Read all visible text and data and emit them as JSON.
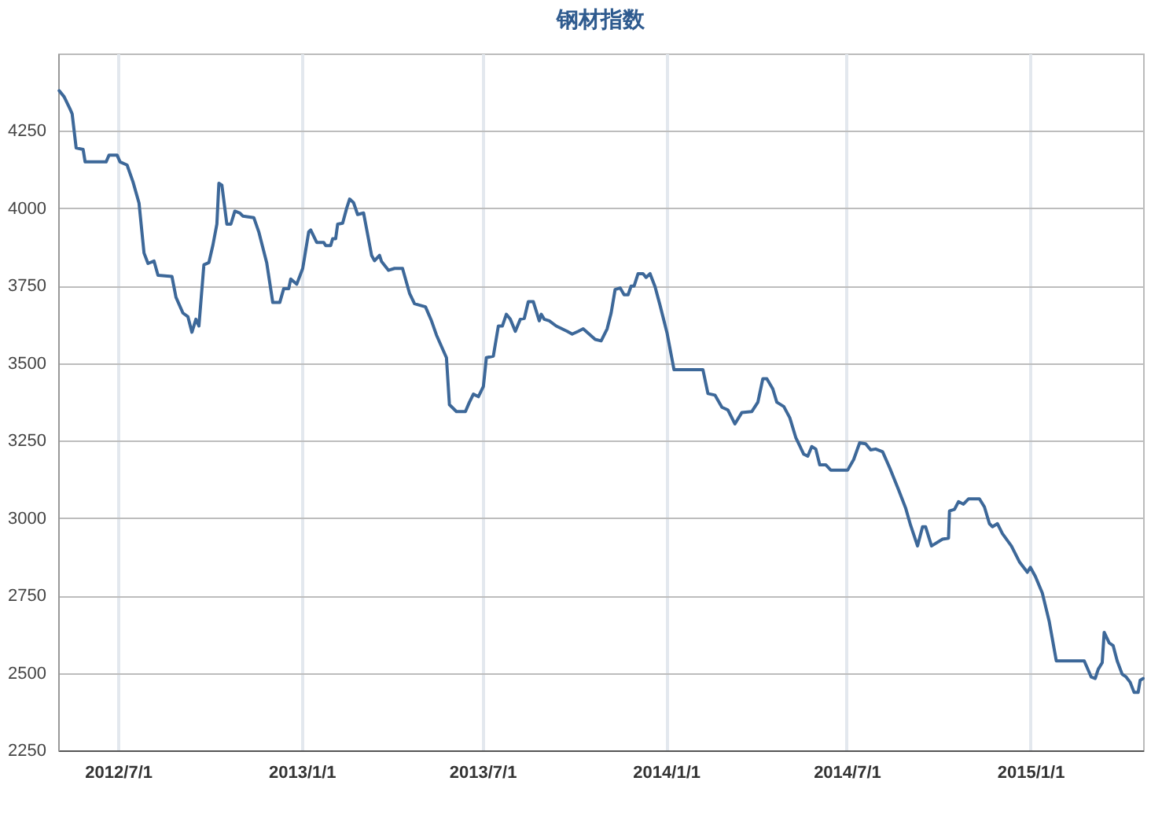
{
  "chart_data": {
    "type": "line",
    "title": "钢材指数",
    "x": [
      "2012-05-03",
      "2012-05-08",
      "2012-05-14",
      "2012-05-16",
      "2012-05-20",
      "2012-05-27",
      "2012-05-29",
      "2012-06-19",
      "2012-06-22",
      "2012-06-30",
      "2012-07-03",
      "2012-07-10",
      "2012-07-16",
      "2012-07-22",
      "2012-07-27",
      "2012-07-31",
      "2012-08-06",
      "2012-08-10",
      "2012-08-24",
      "2012-08-28",
      "2012-09-04",
      "2012-09-09",
      "2012-09-13",
      "2012-09-17",
      "2012-09-20",
      "2012-09-25",
      "2012-09-30",
      "2012-10-04",
      "2012-10-08",
      "2012-10-10",
      "2012-10-13",
      "2012-10-18",
      "2012-10-22",
      "2012-10-26",
      "2012-10-31",
      "2012-11-03",
      "2012-11-14",
      "2012-11-19",
      "2012-11-27",
      "2012-12-03",
      "2012-12-10",
      "2012-12-14",
      "2012-12-19",
      "2012-12-21",
      "2012-12-27",
      "2013-01-02",
      "2013-01-08",
      "2013-01-10",
      "2013-01-16",
      "2013-01-23",
      "2013-01-25",
      "2013-01-30",
      "2013-02-01",
      "2013-02-04",
      "2013-02-06",
      "2013-02-11",
      "2013-02-15",
      "2013-02-18",
      "2013-02-22",
      "2013-02-26",
      "2013-03-04",
      "2013-03-12",
      "2013-03-15",
      "2013-03-20",
      "2013-03-22",
      "2013-03-29",
      "2013-04-04",
      "2013-04-12",
      "2013-04-19",
      "2013-04-24",
      "2013-05-05",
      "2013-05-11",
      "2013-05-16",
      "2013-05-26",
      "2013-05-29",
      "2013-06-05",
      "2013-06-14",
      "2013-06-18",
      "2013-06-22",
      "2013-06-27",
      "2013-07-02",
      "2013-07-05",
      "2013-07-12",
      "2013-07-17",
      "2013-07-21",
      "2013-07-25",
      "2013-07-29",
      "2013-08-03",
      "2013-08-08",
      "2013-08-12",
      "2013-08-16",
      "2013-08-21",
      "2013-08-27",
      "2013-08-29",
      "2013-09-01",
      "2013-09-06",
      "2013-09-13",
      "2013-09-24",
      "2013-09-29",
      "2013-10-05",
      "2013-10-10",
      "2013-10-16",
      "2013-10-22",
      "2013-10-28",
      "2013-11-03",
      "2013-11-07",
      "2013-11-11",
      "2013-11-16",
      "2013-11-20",
      "2013-11-24",
      "2013-11-27",
      "2013-11-30",
      "2013-12-04",
      "2013-12-09",
      "2013-12-12",
      "2013-12-16",
      "2013-12-21",
      "2013-12-26",
      "2014-01-02",
      "2014-01-09",
      "2014-02-07",
      "2014-02-12",
      "2014-02-19",
      "2014-02-26",
      "2014-03-04",
      "2014-03-11",
      "2014-03-18",
      "2014-03-28",
      "2014-04-03",
      "2014-04-08",
      "2014-04-12",
      "2014-04-18",
      "2014-04-22",
      "2014-04-29",
      "2014-05-05",
      "2014-05-11",
      "2014-05-19",
      "2014-05-23",
      "2014-05-27",
      "2014-05-31",
      "2014-06-04",
      "2014-06-10",
      "2014-06-15",
      "2014-07-02",
      "2014-07-08",
      "2014-07-14",
      "2014-07-20",
      "2014-07-25",
      "2014-07-30",
      "2014-08-06",
      "2014-08-13",
      "2014-08-22",
      "2014-08-29",
      "2014-09-03",
      "2014-09-10",
      "2014-09-15",
      "2014-09-18",
      "2014-09-24",
      "2014-10-05",
      "2014-10-11",
      "2014-10-12",
      "2014-10-17",
      "2014-10-21",
      "2014-10-26",
      "2014-10-31",
      "2014-11-11",
      "2014-11-16",
      "2014-11-21",
      "2014-11-24",
      "2014-11-29",
      "2014-12-04",
      "2014-12-13",
      "2014-12-21",
      "2014-12-29",
      "2015-01-01",
      "2015-01-06",
      "2015-01-13",
      "2015-01-20",
      "2015-01-27",
      "2015-02-24",
      "2015-03-03",
      "2015-03-07",
      "2015-03-10",
      "2015-03-14",
      "2015-03-16",
      "2015-03-21",
      "2015-03-25",
      "2015-03-29",
      "2015-04-03",
      "2015-04-07",
      "2015-04-11",
      "2015-04-15",
      "2015-04-19",
      "2015-04-21",
      "2015-04-24"
    ],
    "series": [
      {
        "color": "#3d6899",
        "values": [
          4380,
          4360,
          4320,
          4305,
          4195,
          4190,
          4150,
          4150,
          4172,
          4172,
          4150,
          4140,
          4085,
          4017,
          3856,
          3822,
          3830,
          3784,
          3780,
          3713,
          3662,
          3650,
          3600,
          3642,
          3620,
          3818,
          3825,
          3881,
          3949,
          4081,
          4075,
          3949,
          3949,
          3991,
          3985,
          3975,
          3970,
          3924,
          3823,
          3696,
          3696,
          3741,
          3741,
          3772,
          3755,
          3806,
          3924,
          3930,
          3890,
          3890,
          3880,
          3880,
          3902,
          3902,
          3949,
          3952,
          4000,
          4030,
          4018,
          3980,
          3985,
          3848,
          3831,
          3848,
          3828,
          3800,
          3806,
          3806,
          3726,
          3692,
          3682,
          3637,
          3591,
          3518,
          3366,
          3344,
          3344,
          3374,
          3400,
          3392,
          3425,
          3518,
          3523,
          3620,
          3620,
          3658,
          3642,
          3603,
          3642,
          3645,
          3699,
          3699,
          3637,
          3658,
          3642,
          3637,
          3620,
          3603,
          3594,
          3603,
          3611,
          3594,
          3577,
          3572,
          3611,
          3662,
          3738,
          3743,
          3721,
          3721,
          3749,
          3749,
          3789,
          3789,
          3777,
          3789,
          3747,
          3687,
          3598,
          3479,
          3479,
          3402,
          3397,
          3358,
          3349,
          3304,
          3341,
          3344,
          3374,
          3450,
          3450,
          3417,
          3374,
          3360,
          3324,
          3260,
          3206,
          3200,
          3231,
          3223,
          3172,
          3172,
          3155,
          3155,
          3189,
          3243,
          3240,
          3220,
          3223,
          3214,
          3163,
          3091,
          3033,
          2977,
          2910,
          2972,
          2972,
          2910,
          2932,
          2935,
          3023,
          3028,
          3053,
          3045,
          3062,
          3062,
          3036,
          2982,
          2972,
          2982,
          2950,
          2910,
          2859,
          2825,
          2841,
          2812,
          2758,
          2665,
          2539,
          2539,
          2487,
          2482,
          2512,
          2533,
          2631,
          2597,
          2588,
          2539,
          2496,
          2487,
          2470,
          2437,
          2437,
          2476,
          2482
        ]
      }
    ],
    "xlim": [
      "2012-05-02",
      "2015-04-24"
    ],
    "xticks": [
      {
        "value": "2012-07-01",
        "label": "2012/7/1"
      },
      {
        "value": "2013-01-01",
        "label": "2013/1/1"
      },
      {
        "value": "2013-07-01",
        "label": "2013/7/1"
      },
      {
        "value": "2014-01-01",
        "label": "2014/1/1"
      },
      {
        "value": "2014-07-01",
        "label": "2014/7/1"
      },
      {
        "value": "2015-01-01",
        "label": "2015/1/1"
      }
    ],
    "ylim": [
      2250,
      4500
    ],
    "yticks": [
      2250,
      2500,
      2750,
      3000,
      3250,
      3500,
      3750,
      4000,
      4250
    ],
    "grid": true,
    "marker": "none",
    "line_style": "solid"
  }
}
